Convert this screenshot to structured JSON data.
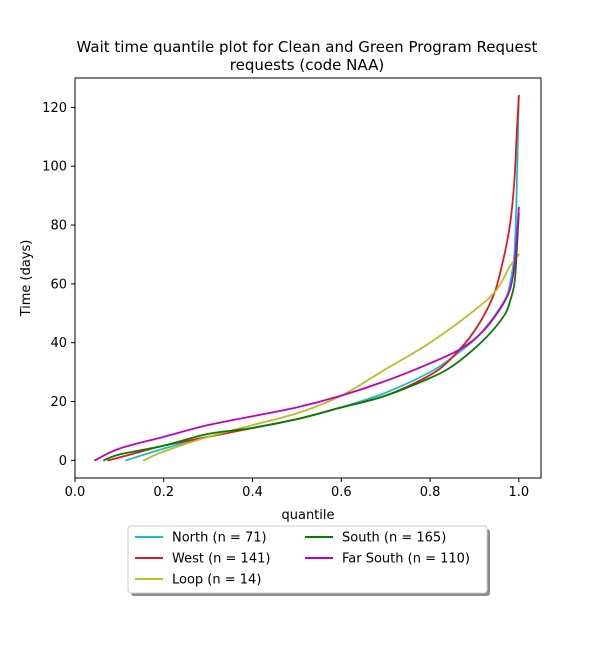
{
  "chart_data": {
    "type": "line",
    "title": [
      "Wait time quantile plot for Clean and Green Program Request",
      "requests (code NAA)"
    ],
    "xlabel": "quantile",
    "ylabel": "Time (days)",
    "xlim": [
      0.0,
      1.05
    ],
    "ylim": [
      -6,
      130
    ],
    "xticks": [
      0.0,
      0.2,
      0.4,
      0.6,
      0.8,
      1.0
    ],
    "xtick_labels": [
      "0.0",
      "0.2",
      "0.4",
      "0.6",
      "0.8",
      "1.0"
    ],
    "yticks": [
      0,
      20,
      40,
      60,
      80,
      100,
      120
    ],
    "ytick_labels": [
      "0",
      "20",
      "40",
      "60",
      "80",
      "100",
      "120"
    ],
    "grid": false,
    "legend_position": "below plot, centered, two columns",
    "series": [
      {
        "name": "North (n = 71)",
        "color": "#17becf",
        "x": [
          0.115,
          0.2,
          0.3,
          0.4,
          0.5,
          0.6,
          0.7,
          0.8,
          0.85,
          0.9,
          0.94,
          0.97,
          0.98,
          0.99,
          0.995,
          1.0
        ],
        "y": [
          0,
          4,
          8,
          11,
          14,
          18,
          23,
          30,
          35,
          41,
          48,
          55,
          60,
          70,
          90,
          124
        ]
      },
      {
        "name": "West (n = 141)",
        "color": "#e31a1c",
        "x": [
          0.075,
          0.15,
          0.2,
          0.3,
          0.4,
          0.5,
          0.6,
          0.7,
          0.8,
          0.85,
          0.9,
          0.94,
          0.96,
          0.98,
          0.99,
          0.995,
          1.0
        ],
        "y": [
          0,
          3,
          5,
          8,
          11,
          14,
          18,
          22,
          29,
          35,
          44,
          55,
          65,
          80,
          95,
          110,
          124
        ]
      },
      {
        "name": "Loop (n = 14)",
        "color": "#bcbd22",
        "x": [
          0.155,
          0.2,
          0.3,
          0.4,
          0.5,
          0.6,
          0.7,
          0.8,
          0.9,
          0.95,
          0.98,
          1.0
        ],
        "y": [
          0,
          3,
          8,
          12,
          16,
          22,
          31,
          40,
          51,
          58,
          66,
          70
        ]
      },
      {
        "name": "South (n = 165)",
        "color": "#008000",
        "x": [
          0.065,
          0.1,
          0.2,
          0.3,
          0.4,
          0.5,
          0.6,
          0.7,
          0.8,
          0.85,
          0.9,
          0.94,
          0.97,
          0.98,
          0.99,
          0.995,
          1.0
        ],
        "y": [
          0,
          2,
          5,
          9,
          11,
          14,
          18,
          22,
          28,
          32,
          38,
          44,
          50,
          54,
          60,
          70,
          84
        ]
      },
      {
        "name": "Far South (n = 110)",
        "color": "#c000c0",
        "x": [
          0.045,
          0.1,
          0.2,
          0.3,
          0.4,
          0.5,
          0.6,
          0.7,
          0.8,
          0.87,
          0.92,
          0.96,
          0.98,
          0.99,
          0.995,
          1.0
        ],
        "y": [
          0,
          4,
          8,
          12,
          15,
          18,
          22,
          27,
          33,
          38,
          44,
          52,
          58,
          66,
          75,
          86
        ]
      }
    ]
  }
}
